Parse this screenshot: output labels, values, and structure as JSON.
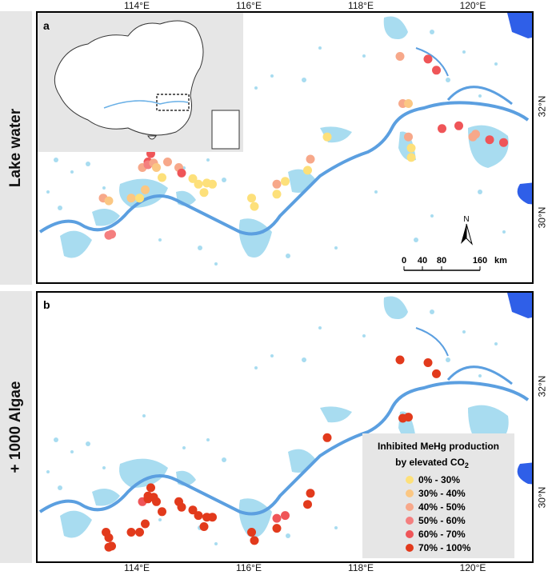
{
  "panels": [
    {
      "letter": "a",
      "row_label": "Lake water"
    },
    {
      "letter": "b",
      "row_label": "+ 1000 Algae"
    }
  ],
  "axes": {
    "lon_ticks": [
      "114°E",
      "116°E",
      "118°E",
      "120°E"
    ],
    "lat_ticks": [
      "32°N",
      "30°N"
    ]
  },
  "scale_bar": {
    "labels": [
      "0",
      "40",
      "80",
      "160"
    ],
    "unit": "km"
  },
  "north_arrow": {
    "label": "N"
  },
  "legend": {
    "title_line1": "Inhibited MeHg production",
    "title_line2": "by elevated CO",
    "title_sub": "2",
    "items": [
      {
        "label": "0% - 30%",
        "color": "#fde07a"
      },
      {
        "label": "30% - 40%",
        "color": "#fbc783"
      },
      {
        "label": "40% - 50%",
        "color": "#f7a88a"
      },
      {
        "label": "50% - 60%",
        "color": "#f47f7f"
      },
      {
        "label": "60% - 70%",
        "color": "#ef5558"
      },
      {
        "label": "70% - 100%",
        "color": "#e23a1c"
      }
    ]
  },
  "colors": {
    "water": "#a8dcf0",
    "river": "#5b9fe0",
    "sea": "#2f5fe8",
    "frame": "#000000"
  },
  "sites_a": [
    {
      "lon": 113.55,
      "lat": 29.7,
      "c": 3
    },
    {
      "lon": 113.5,
      "lat": 29.68,
      "c": 3
    },
    {
      "lon": 113.4,
      "lat": 30.35,
      "c": 2
    },
    {
      "lon": 113.5,
      "lat": 30.3,
      "c": 1
    },
    {
      "lon": 113.9,
      "lat": 30.35,
      "c": 1
    },
    {
      "lon": 114.05,
      "lat": 30.35,
      "c": 0
    },
    {
      "lon": 114.15,
      "lat": 30.5,
      "c": 1
    },
    {
      "lon": 114.1,
      "lat": 30.9,
      "c": 2
    },
    {
      "lon": 114.2,
      "lat": 31.0,
      "c": 4
    },
    {
      "lon": 114.25,
      "lat": 31.15,
      "c": 4
    },
    {
      "lon": 114.2,
      "lat": 30.95,
      "c": 3
    },
    {
      "lon": 114.3,
      "lat": 30.98,
      "c": 2
    },
    {
      "lon": 114.35,
      "lat": 30.9,
      "c": 1
    },
    {
      "lon": 114.45,
      "lat": 30.72,
      "c": 0
    },
    {
      "lon": 114.55,
      "lat": 31.0,
      "c": 2
    },
    {
      "lon": 114.75,
      "lat": 30.9,
      "c": 2
    },
    {
      "lon": 114.8,
      "lat": 30.8,
      "c": 4
    },
    {
      "lon": 115.0,
      "lat": 30.7,
      "c": 0
    },
    {
      "lon": 115.1,
      "lat": 30.6,
      "c": 0
    },
    {
      "lon": 115.25,
      "lat": 30.62,
      "c": 0
    },
    {
      "lon": 115.35,
      "lat": 30.6,
      "c": 0
    },
    {
      "lon": 115.2,
      "lat": 30.45,
      "c": 0
    },
    {
      "lon": 116.05,
      "lat": 30.35,
      "c": 0
    },
    {
      "lon": 116.1,
      "lat": 30.2,
      "c": 0
    },
    {
      "lon": 116.5,
      "lat": 30.42,
      "c": 0
    },
    {
      "lon": 116.5,
      "lat": 30.6,
      "c": 2
    },
    {
      "lon": 116.65,
      "lat": 30.65,
      "c": 0
    },
    {
      "lon": 117.05,
      "lat": 30.85,
      "c": 0
    },
    {
      "lon": 117.1,
      "lat": 31.05,
      "c": 2
    },
    {
      "lon": 117.4,
      "lat": 31.45,
      "c": 0
    },
    {
      "lon": 118.7,
      "lat": 32.9,
      "c": 2
    },
    {
      "lon": 119.2,
      "lat": 32.85,
      "c": 4
    },
    {
      "lon": 119.35,
      "lat": 32.65,
      "c": 4
    },
    {
      "lon": 118.75,
      "lat": 32.05,
      "c": 2
    },
    {
      "lon": 118.85,
      "lat": 32.05,
      "c": 1
    },
    {
      "lon": 118.85,
      "lat": 31.45,
      "c": 2
    },
    {
      "lon": 118.9,
      "lat": 31.25,
      "c": 0
    },
    {
      "lon": 118.9,
      "lat": 31.08,
      "c": 0
    },
    {
      "lon": 119.45,
      "lat": 31.6,
      "c": 4
    },
    {
      "lon": 119.75,
      "lat": 31.65,
      "c": 4
    },
    {
      "lon": 120.0,
      "lat": 31.45,
      "c": 2
    },
    {
      "lon": 120.05,
      "lat": 31.5,
      "c": 2
    },
    {
      "lon": 120.3,
      "lat": 31.4,
      "c": 4
    },
    {
      "lon": 120.55,
      "lat": 31.35,
      "c": 4
    }
  ],
  "sites_b": [
    {
      "lon": 113.55,
      "lat": 29.7,
      "c": 5
    },
    {
      "lon": 113.5,
      "lat": 29.68,
      "c": 5
    },
    {
      "lon": 113.45,
      "lat": 29.95,
      "c": 5
    },
    {
      "lon": 113.5,
      "lat": 29.85,
      "c": 5
    },
    {
      "lon": 113.9,
      "lat": 29.95,
      "c": 5
    },
    {
      "lon": 114.05,
      "lat": 29.95,
      "c": 5
    },
    {
      "lon": 114.15,
      "lat": 30.1,
      "c": 5
    },
    {
      "lon": 114.1,
      "lat": 30.5,
      "c": 4
    },
    {
      "lon": 114.2,
      "lat": 30.6,
      "c": 5
    },
    {
      "lon": 114.25,
      "lat": 30.75,
      "c": 5
    },
    {
      "lon": 114.2,
      "lat": 30.55,
      "c": 5
    },
    {
      "lon": 114.3,
      "lat": 30.58,
      "c": 5
    },
    {
      "lon": 114.35,
      "lat": 30.5,
      "c": 5
    },
    {
      "lon": 114.45,
      "lat": 30.32,
      "c": 5
    },
    {
      "lon": 114.75,
      "lat": 30.5,
      "c": 5
    },
    {
      "lon": 114.8,
      "lat": 30.4,
      "c": 5
    },
    {
      "lon": 115.0,
      "lat": 30.35,
      "c": 5
    },
    {
      "lon": 115.1,
      "lat": 30.25,
      "c": 5
    },
    {
      "lon": 115.25,
      "lat": 30.22,
      "c": 5
    },
    {
      "lon": 115.35,
      "lat": 30.22,
      "c": 5
    },
    {
      "lon": 115.2,
      "lat": 30.05,
      "c": 5
    },
    {
      "lon": 116.05,
      "lat": 29.95,
      "c": 5
    },
    {
      "lon": 116.1,
      "lat": 29.8,
      "c": 5
    },
    {
      "lon": 116.5,
      "lat": 30.02,
      "c": 5
    },
    {
      "lon": 116.5,
      "lat": 30.2,
      "c": 4
    },
    {
      "lon": 116.65,
      "lat": 30.25,
      "c": 4
    },
    {
      "lon": 117.05,
      "lat": 30.45,
      "c": 5
    },
    {
      "lon": 117.1,
      "lat": 30.65,
      "c": 5
    },
    {
      "lon": 117.4,
      "lat": 31.65,
      "c": 5
    },
    {
      "lon": 118.7,
      "lat": 33.05,
      "c": 5
    },
    {
      "lon": 119.2,
      "lat": 33.0,
      "c": 5
    },
    {
      "lon": 119.35,
      "lat": 32.8,
      "c": 5
    },
    {
      "lon": 118.75,
      "lat": 32.0,
      "c": 5
    },
    {
      "lon": 118.85,
      "lat": 32.02,
      "c": 5
    },
    {
      "lon": 118.85,
      "lat": 31.45,
      "c": 5
    },
    {
      "lon": 118.9,
      "lat": 31.25,
      "c": 5
    },
    {
      "lon": 118.9,
      "lat": 31.08,
      "c": 5
    },
    {
      "lon": 119.45,
      "lat": 31.6,
      "c": 5
    },
    {
      "lon": 119.75,
      "lat": 31.62,
      "c": 5
    },
    {
      "lon": 120.0,
      "lat": 31.45,
      "c": 5
    },
    {
      "lon": 120.05,
      "lat": 31.5,
      "c": 5
    },
    {
      "lon": 120.3,
      "lat": 31.4,
      "c": 5
    },
    {
      "lon": 120.55,
      "lat": 31.3,
      "c": 5
    }
  ]
}
